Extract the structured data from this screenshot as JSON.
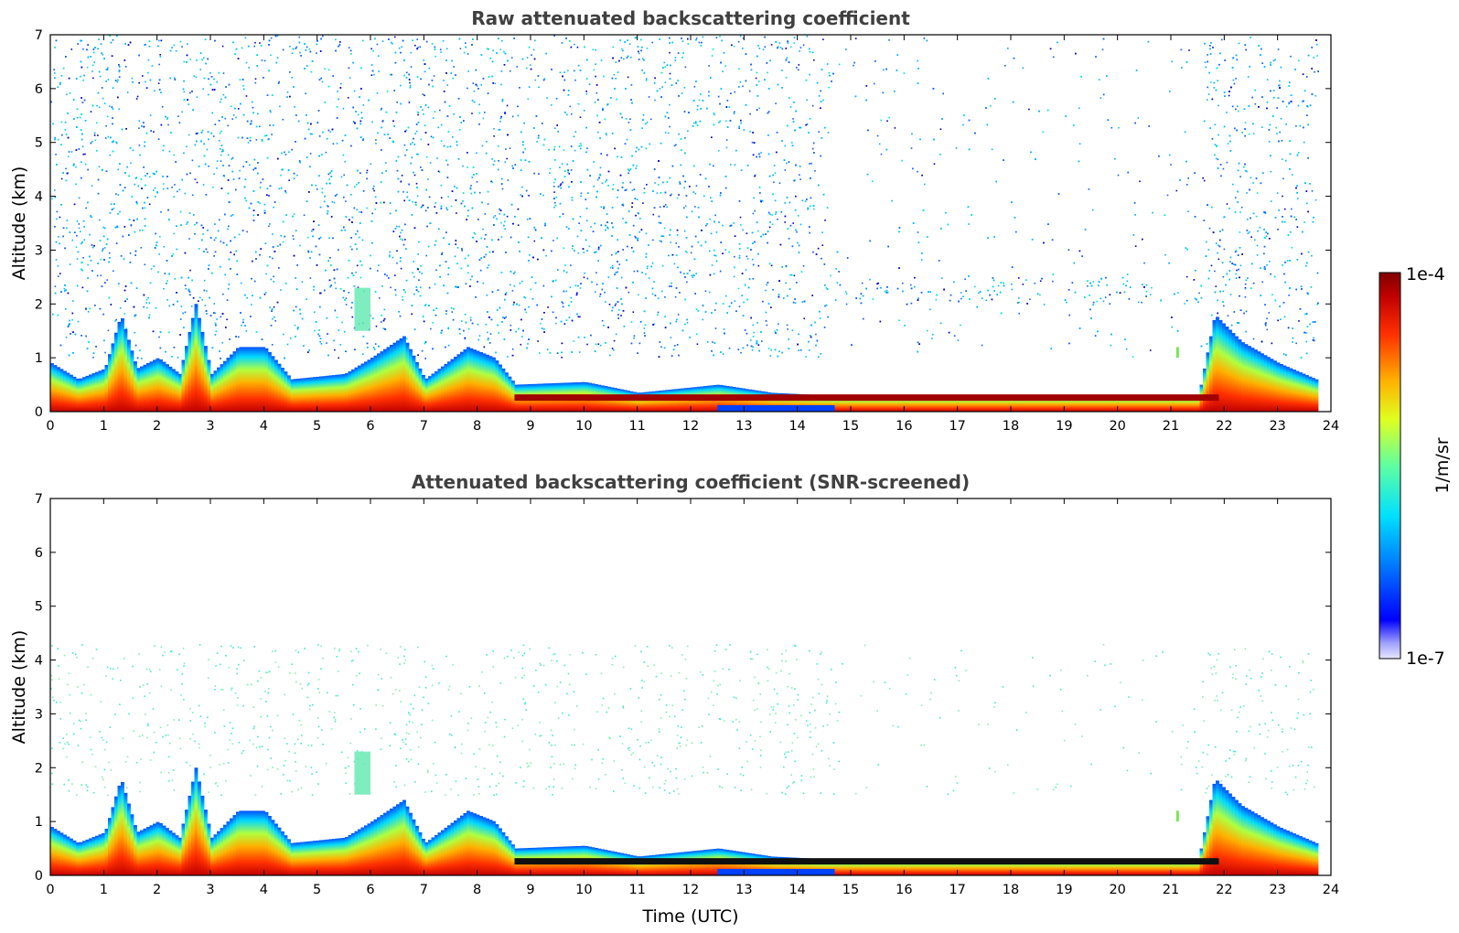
{
  "chart_data": [
    {
      "type": "heatmap",
      "title": "Raw attenuated backscattering coefficient",
      "xlabel": "",
      "ylabel": "Altitude (km)",
      "xlim": [
        0,
        24
      ],
      "ylim": [
        0,
        7
      ],
      "xticks": [
        "0",
        "1",
        "2",
        "3",
        "4",
        "5",
        "6",
        "7",
        "8",
        "9",
        "10",
        "11",
        "12",
        "13",
        "14",
        "15",
        "16",
        "17",
        "18",
        "19",
        "20",
        "21",
        "22",
        "23",
        "24"
      ],
      "yticks": [
        "0",
        "1",
        "2",
        "3",
        "4",
        "5",
        "6",
        "7"
      ],
      "grid": false,
      "boundary_layer_top_km": [
        {
          "t": 0,
          "h": 0.9
        },
        {
          "t": 0.5,
          "h": 0.6
        },
        {
          "t": 1.0,
          "h": 0.8
        },
        {
          "t": 1.3,
          "h": 1.8
        },
        {
          "t": 1.6,
          "h": 0.8
        },
        {
          "t": 2.0,
          "h": 1.0
        },
        {
          "t": 2.4,
          "h": 0.7
        },
        {
          "t": 2.7,
          "h": 2.0
        },
        {
          "t": 3.0,
          "h": 0.7
        },
        {
          "t": 3.5,
          "h": 1.2
        },
        {
          "t": 4.0,
          "h": 1.2
        },
        {
          "t": 4.5,
          "h": 0.6
        },
        {
          "t": 5.5,
          "h": 0.7
        },
        {
          "t": 6.0,
          "h": 1.0
        },
        {
          "t": 6.6,
          "h": 1.4
        },
        {
          "t": 7.0,
          "h": 0.6
        },
        {
          "t": 7.8,
          "h": 1.2
        },
        {
          "t": 8.3,
          "h": 1.0
        },
        {
          "t": 8.7,
          "h": 0.5
        },
        {
          "t": 10.0,
          "h": 0.55
        },
        {
          "t": 11.0,
          "h": 0.35
        },
        {
          "t": 12.5,
          "h": 0.5
        },
        {
          "t": 13.5,
          "h": 0.35
        },
        {
          "t": 14.5,
          "h": 0.3
        },
        {
          "t": 15.0,
          "h": 0.3
        },
        {
          "t": 16.0,
          "h": 0.3
        },
        {
          "t": 18.0,
          "h": 0.3
        },
        {
          "t": 21.5,
          "h": 0.3
        },
        {
          "t": 21.8,
          "h": 1.8
        },
        {
          "t": 22.3,
          "h": 1.3
        },
        {
          "t": 23.0,
          "h": 0.9
        },
        {
          "t": 23.7,
          "h": 0.6
        }
      ],
      "notable_features": [
        {
          "label": "elevated aerosol",
          "t_range": [
            5.7,
            6.0
          ],
          "h_range": [
            1.5,
            2.3
          ]
        },
        {
          "label": "low cloud layer",
          "t_range": [
            8.7,
            21.9
          ],
          "h_range": [
            0.15,
            0.4
          ]
        },
        {
          "label": "isolated cloud",
          "t_range": [
            21.1,
            21.2
          ],
          "h_range": [
            1.0,
            1.2
          ]
        }
      ]
    },
    {
      "type": "heatmap",
      "title": "Attenuated backscattering coefficient (SNR-screened)",
      "xlabel": "Time (UTC)",
      "ylabel": "Altitude (km)",
      "xlim": [
        0,
        24
      ],
      "ylim": [
        0,
        7
      ],
      "xticks": [
        "0",
        "1",
        "2",
        "3",
        "4",
        "5",
        "6",
        "7",
        "8",
        "9",
        "10",
        "11",
        "12",
        "13",
        "14",
        "15",
        "16",
        "17",
        "18",
        "19",
        "20",
        "21",
        "22",
        "23",
        "24"
      ],
      "yticks": [
        "0",
        "1",
        "2",
        "3",
        "4",
        "5",
        "6",
        "7"
      ],
      "grid": false
    }
  ],
  "colorbar": {
    "max_label": "1e-4",
    "min_label": "1e-7",
    "unit_label": "1/m/sr",
    "scale": "log",
    "range": [
      1e-07,
      0.0001
    ],
    "colormap": [
      "#0000a0",
      "#0000ff",
      "#0080ff",
      "#00d0ff",
      "#40ffc0",
      "#a0ff60",
      "#ffff00",
      "#ffa000",
      "#ff4000",
      "#d00000",
      "#800000"
    ]
  }
}
